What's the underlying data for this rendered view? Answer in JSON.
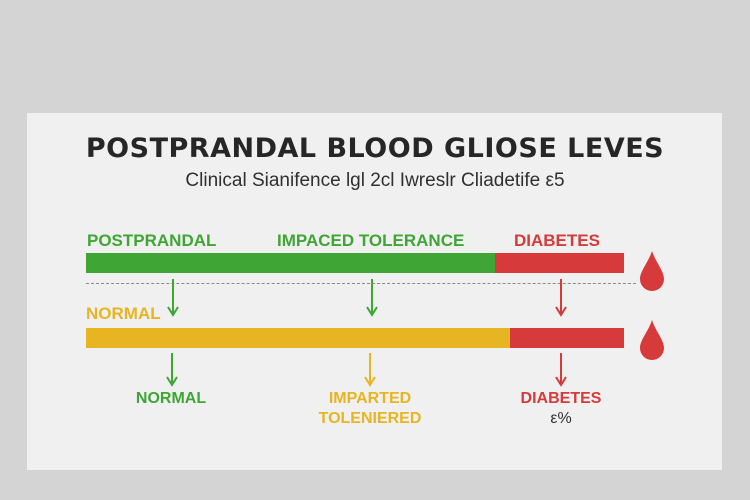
{
  "header": {
    "title": "POSTPRANDAL BLOOD GLIOSE LEVES",
    "subtitle": "Clinical Sianifence lgl 2cl Iwreslr Cliadetife ε5"
  },
  "top_row": {
    "label_left": "POSTPRANDAL",
    "label_mid": "IMPACED TOLERANCE",
    "label_right": "DIABETES",
    "left_label": "NORMAL"
  },
  "bottom_row": {
    "normal": "NORMAL",
    "impaired_line1": "IMPARTED",
    "impaired_line2": "TOLENIERED",
    "diabetes_line1": "DIABETES",
    "diabetes_line2": "ε%"
  },
  "colors": {
    "green": "#3fa535",
    "yellow": "#e7b521",
    "red": "#d63a3a",
    "background": "#d4d4d4",
    "card": "#f0f0f0"
  },
  "icons": [
    "blood-drop-icon",
    "down-arrow-icon"
  ]
}
